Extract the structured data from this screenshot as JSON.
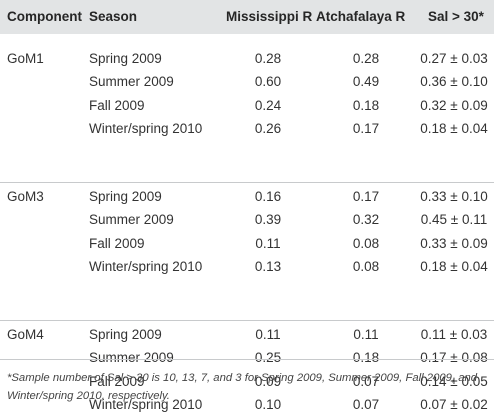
{
  "headers": [
    "Component",
    "Season",
    "Mississippi R",
    "Atchafalaya R",
    "Sal > 30*"
  ],
  "groups": [
    {
      "component": "GoM1",
      "rows": [
        {
          "season": "Spring 2009",
          "miss": "0.28",
          "atch": "0.28",
          "sal": "0.27 ± 0.03"
        },
        {
          "season": "Summer 2009",
          "miss": "0.60",
          "atch": "0.49",
          "sal": "0.36 ± 0.10"
        },
        {
          "season": "Fall 2009",
          "miss": "0.24",
          "atch": "0.18",
          "sal": "0.32 ± 0.09"
        },
        {
          "season": "Winter/spring 2010",
          "miss": "0.26",
          "atch": "0.17",
          "sal": "0.18 ± 0.04"
        }
      ]
    },
    {
      "component": "GoM3",
      "rows": [
        {
          "season": "Spring 2009",
          "miss": "0.16",
          "atch": "0.17",
          "sal": "0.33 ± 0.10"
        },
        {
          "season": "Summer 2009",
          "miss": "0.39",
          "atch": "0.32",
          "sal": "0.45 ± 0.11"
        },
        {
          "season": "Fall 2009",
          "miss": "0.11",
          "atch": "0.08",
          "sal": "0.33 ± 0.09"
        },
        {
          "season": "Winter/spring 2010",
          "miss": "0.13",
          "atch": "0.08",
          "sal": "0.18 ± 0.04"
        }
      ]
    },
    {
      "component": "GoM4",
      "rows": [
        {
          "season": "Spring 2009",
          "miss": "0.11",
          "atch": "0.11",
          "sal": "0.11 ± 0.03"
        },
        {
          "season": "Summer 2009",
          "miss": "0.25",
          "atch": "0.18",
          "sal": "0.17 ± 0.08"
        },
        {
          "season": "Fall 2009",
          "miss": "0.09",
          "atch": "0.07",
          "sal": "0.14 ± 0.05"
        },
        {
          "season": "Winter/spring 2010",
          "miss": "0.10",
          "atch": "0.07",
          "sal": "0.07 ± 0.02"
        }
      ]
    }
  ],
  "footnote": "*Sample number of Sal > 30 is 10, 13, 7, and 3 for Spring 2009, Summer 2009, Fall 2009, and Winter/spring 2010, respectively.",
  "colors": {
    "header_bg": "#e2e4e5",
    "rule": "#c8cacc",
    "text": "#333333"
  }
}
